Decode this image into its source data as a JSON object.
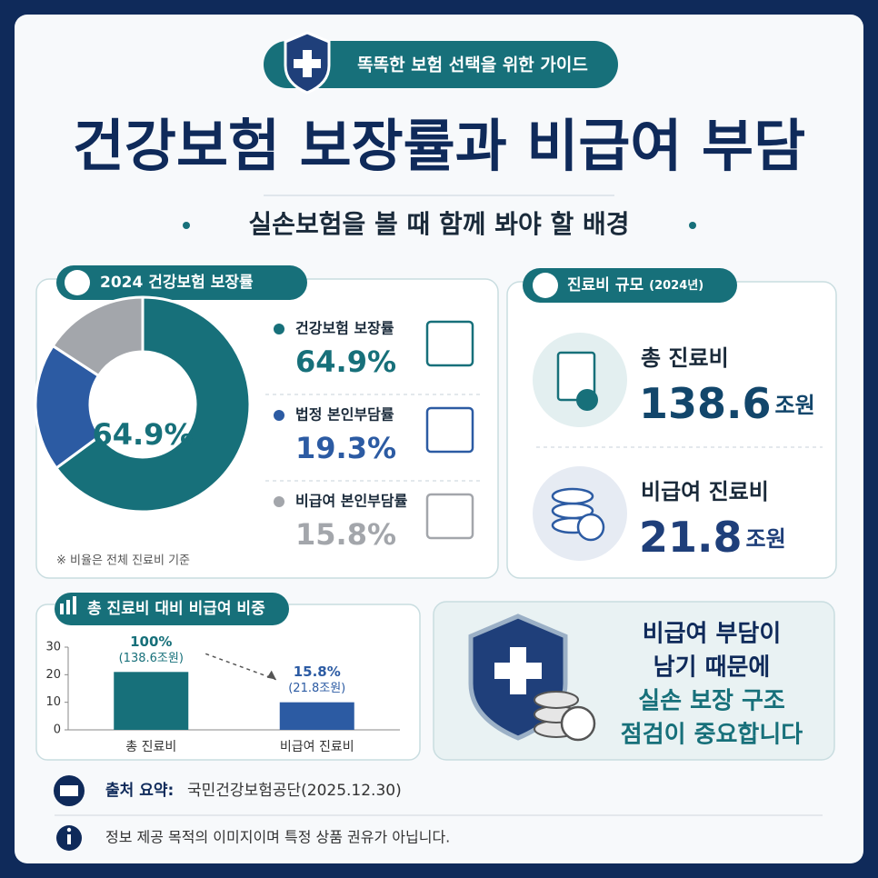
{
  "header": {
    "badge": "똑똑한 보험 선택을 위한 가이드",
    "title": "건강보험 보장률과 비급여 부담",
    "subtitle": "실손보험을 볼 때 함께 봐야 할 배경"
  },
  "chart_data": [
    {
      "type": "donut",
      "title": "2024 건강보험 보장률",
      "categories": [
        "건강보험 보장률",
        "법정 본인부담률",
        "비급여 본인부담률"
      ],
      "values": [
        64.9,
        19.3,
        15.8
      ],
      "value_labels": [
        "64.9%",
        "19.3%",
        "15.8%"
      ],
      "colors": [
        "#17707a",
        "#2c5ba3",
        "#a3a6ab"
      ],
      "note": "※ 비율은 전체 진료비 기준"
    },
    {
      "type": "bar",
      "title": "총 진료비 대비 비급여 비중",
      "categories": [
        "총 진료비",
        "비급여 진료비"
      ],
      "values": [
        21,
        10
      ],
      "colors": [
        "#17707a",
        "#2c5ba3"
      ],
      "ylim": [
        0,
        30
      ],
      "yticks": [
        0,
        10,
        20,
        30
      ],
      "annotations": [
        [
          "100%",
          "(138.6조원)"
        ],
        [
          "15.8%",
          "(21.8조원)"
        ]
      ]
    }
  ],
  "costs": {
    "title": "진료비 규모",
    "title_note": "(2024년)",
    "items": [
      {
        "label": "총 진료비",
        "amount": "138.6",
        "unit": "조원"
      },
      {
        "label": "비급여 진료비",
        "amount": "21.8",
        "unit": "조원"
      }
    ]
  },
  "message": {
    "lines": [
      "비급여 부담이",
      "남기 때문에",
      "실손 보장 구조",
      "점검이 중요합니다"
    ]
  },
  "footer": {
    "source_label": "출처 요약:",
    "source": "국민건강보험공단(2025.12.30)",
    "disclaimer": "정보 제공 목적의 이미지이며 특정 상품 권유가 아닙니다."
  }
}
